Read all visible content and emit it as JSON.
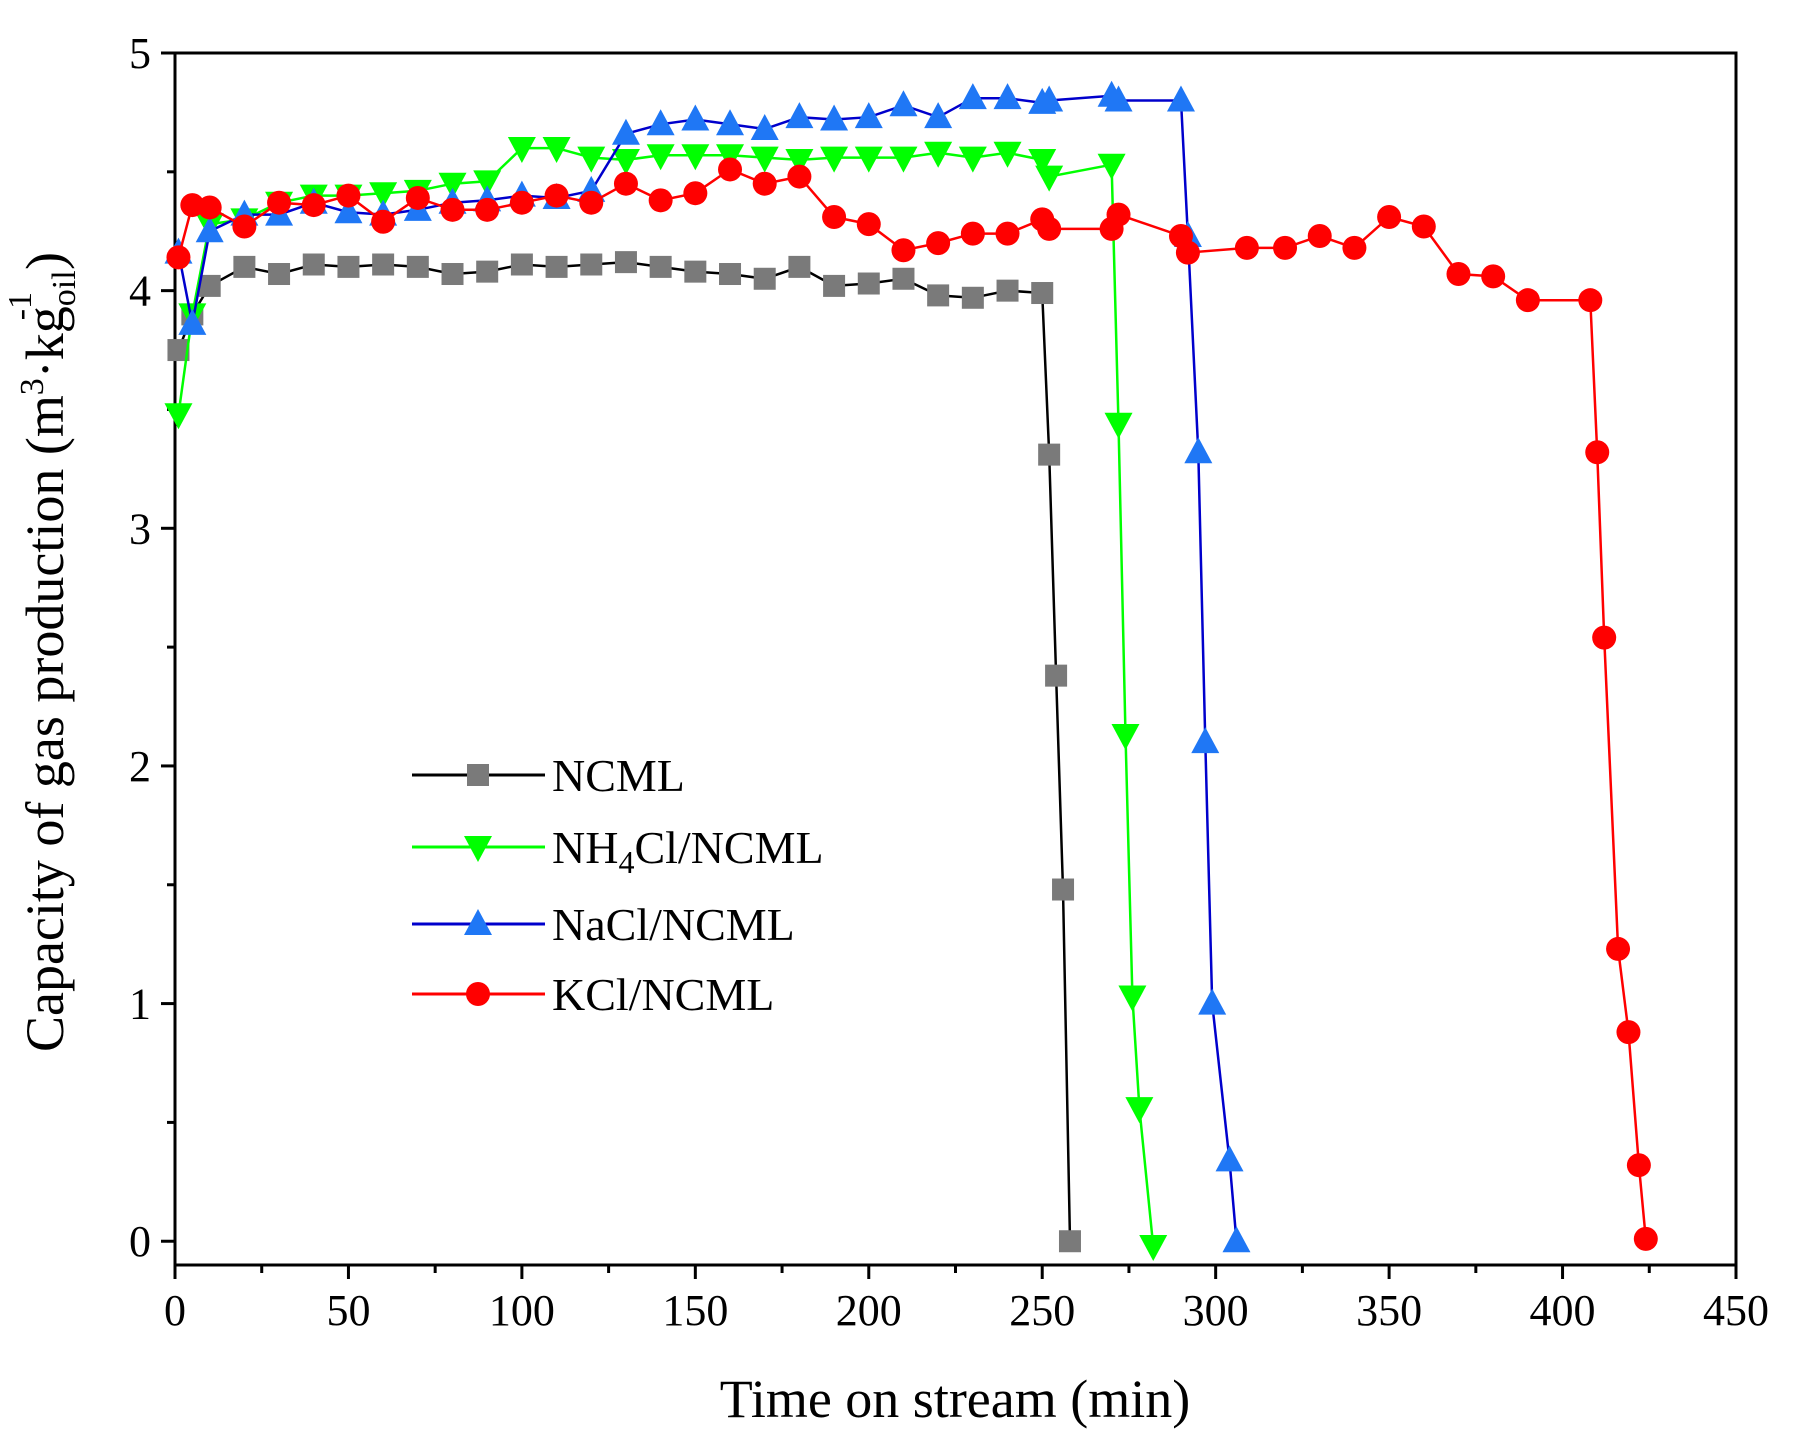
{
  "chart_data": {
    "type": "line",
    "title": "",
    "xlabel": "Time on stream (min)",
    "ylabel": {
      "main": "Capacity of gas production (m",
      "sup1": "3",
      "mid": "·kg",
      "sub": "oil",
      "sup2": "-1",
      "end": ")"
    },
    "xlim": [
      0,
      450
    ],
    "ylim": [
      -0.1,
      5
    ],
    "xticks": [
      0,
      50,
      100,
      150,
      200,
      250,
      300,
      350,
      400,
      450
    ],
    "yticks": [
      0,
      1,
      2,
      3,
      4,
      5
    ],
    "grid": false,
    "legend_position": "center-left",
    "series": [
      {
        "name": "NCML",
        "color": "#000000",
        "marker_color": "#7a7a7a",
        "marker": "square",
        "x": [
          1,
          5,
          10,
          20,
          30,
          40,
          50,
          60,
          70,
          80,
          90,
          100,
          110,
          120,
          130,
          140,
          150,
          160,
          170,
          180,
          190,
          200,
          210,
          220,
          230,
          240,
          250,
          252,
          254,
          256,
          258
        ],
        "y": [
          3.75,
          3.9,
          4.02,
          4.1,
          4.07,
          4.11,
          4.1,
          4.11,
          4.1,
          4.07,
          4.08,
          4.11,
          4.1,
          4.11,
          4.12,
          4.1,
          4.08,
          4.07,
          4.05,
          4.1,
          4.02,
          4.03,
          4.05,
          3.98,
          3.97,
          4.0,
          3.99,
          3.31,
          2.38,
          1.48,
          0.0
        ]
      },
      {
        "name": "NH4Cl/NCML",
        "name_parts": {
          "main": "NH",
          "sub": "4",
          "rest": "Cl/NCML"
        },
        "color": "#00ff00",
        "marker_color": "#00ff00",
        "marker": "triangle-down",
        "x": [
          1,
          5,
          10,
          20,
          30,
          40,
          50,
          60,
          70,
          80,
          90,
          100,
          110,
          120,
          130,
          140,
          150,
          160,
          170,
          180,
          190,
          200,
          210,
          220,
          230,
          240,
          250,
          252,
          270,
          272,
          274,
          276,
          278,
          282
        ],
        "y": [
          3.48,
          3.9,
          4.28,
          4.3,
          4.37,
          4.4,
          4.4,
          4.41,
          4.42,
          4.45,
          4.46,
          4.6,
          4.6,
          4.56,
          4.55,
          4.57,
          4.57,
          4.57,
          4.56,
          4.55,
          4.56,
          4.56,
          4.56,
          4.58,
          4.56,
          4.58,
          4.55,
          4.48,
          4.53,
          3.44,
          2.13,
          1.03,
          0.56,
          -0.02
        ]
      },
      {
        "name": "NaCl/NCML",
        "color": "#0000cc",
        "marker_color": "#1f77f5",
        "marker": "triangle-up",
        "x": [
          1,
          5,
          10,
          20,
          30,
          40,
          50,
          60,
          70,
          80,
          90,
          100,
          110,
          120,
          130,
          140,
          150,
          160,
          170,
          180,
          190,
          200,
          210,
          220,
          230,
          240,
          250,
          252,
          270,
          272,
          290,
          292,
          295,
          297,
          299,
          304,
          306
        ],
        "y": [
          4.16,
          3.86,
          4.25,
          4.32,
          4.32,
          4.37,
          4.33,
          4.32,
          4.34,
          4.37,
          4.38,
          4.4,
          4.39,
          4.42,
          4.66,
          4.7,
          4.72,
          4.7,
          4.68,
          4.73,
          4.72,
          4.73,
          4.78,
          4.73,
          4.81,
          4.81,
          4.79,
          4.8,
          4.82,
          4.8,
          4.8,
          4.23,
          3.32,
          2.1,
          1.0,
          0.34,
          0.0
        ]
      },
      {
        "name": "KCl/NCML",
        "color": "#ff0000",
        "marker_color": "#ff0000",
        "marker": "circle",
        "x": [
          1,
          5,
          10,
          20,
          30,
          40,
          50,
          60,
          70,
          80,
          90,
          100,
          110,
          120,
          130,
          140,
          150,
          160,
          170,
          180,
          190,
          200,
          210,
          220,
          230,
          240,
          250,
          252,
          270,
          272,
          290,
          292,
          309,
          320,
          330,
          340,
          350,
          360,
          370,
          380,
          390,
          408,
          410,
          412,
          416,
          419,
          422,
          424
        ],
        "y": [
          4.14,
          4.36,
          4.35,
          4.27,
          4.37,
          4.36,
          4.4,
          4.29,
          4.39,
          4.34,
          4.34,
          4.37,
          4.4,
          4.37,
          4.45,
          4.38,
          4.41,
          4.51,
          4.45,
          4.48,
          4.31,
          4.28,
          4.17,
          4.2,
          4.24,
          4.24,
          4.3,
          4.26,
          4.26,
          4.32,
          4.23,
          4.16,
          4.18,
          4.18,
          4.23,
          4.18,
          4.31,
          4.27,
          4.07,
          4.06,
          3.96,
          3.96,
          3.32,
          2.54,
          1.23,
          0.88,
          0.32,
          0.01
        ]
      }
    ]
  }
}
